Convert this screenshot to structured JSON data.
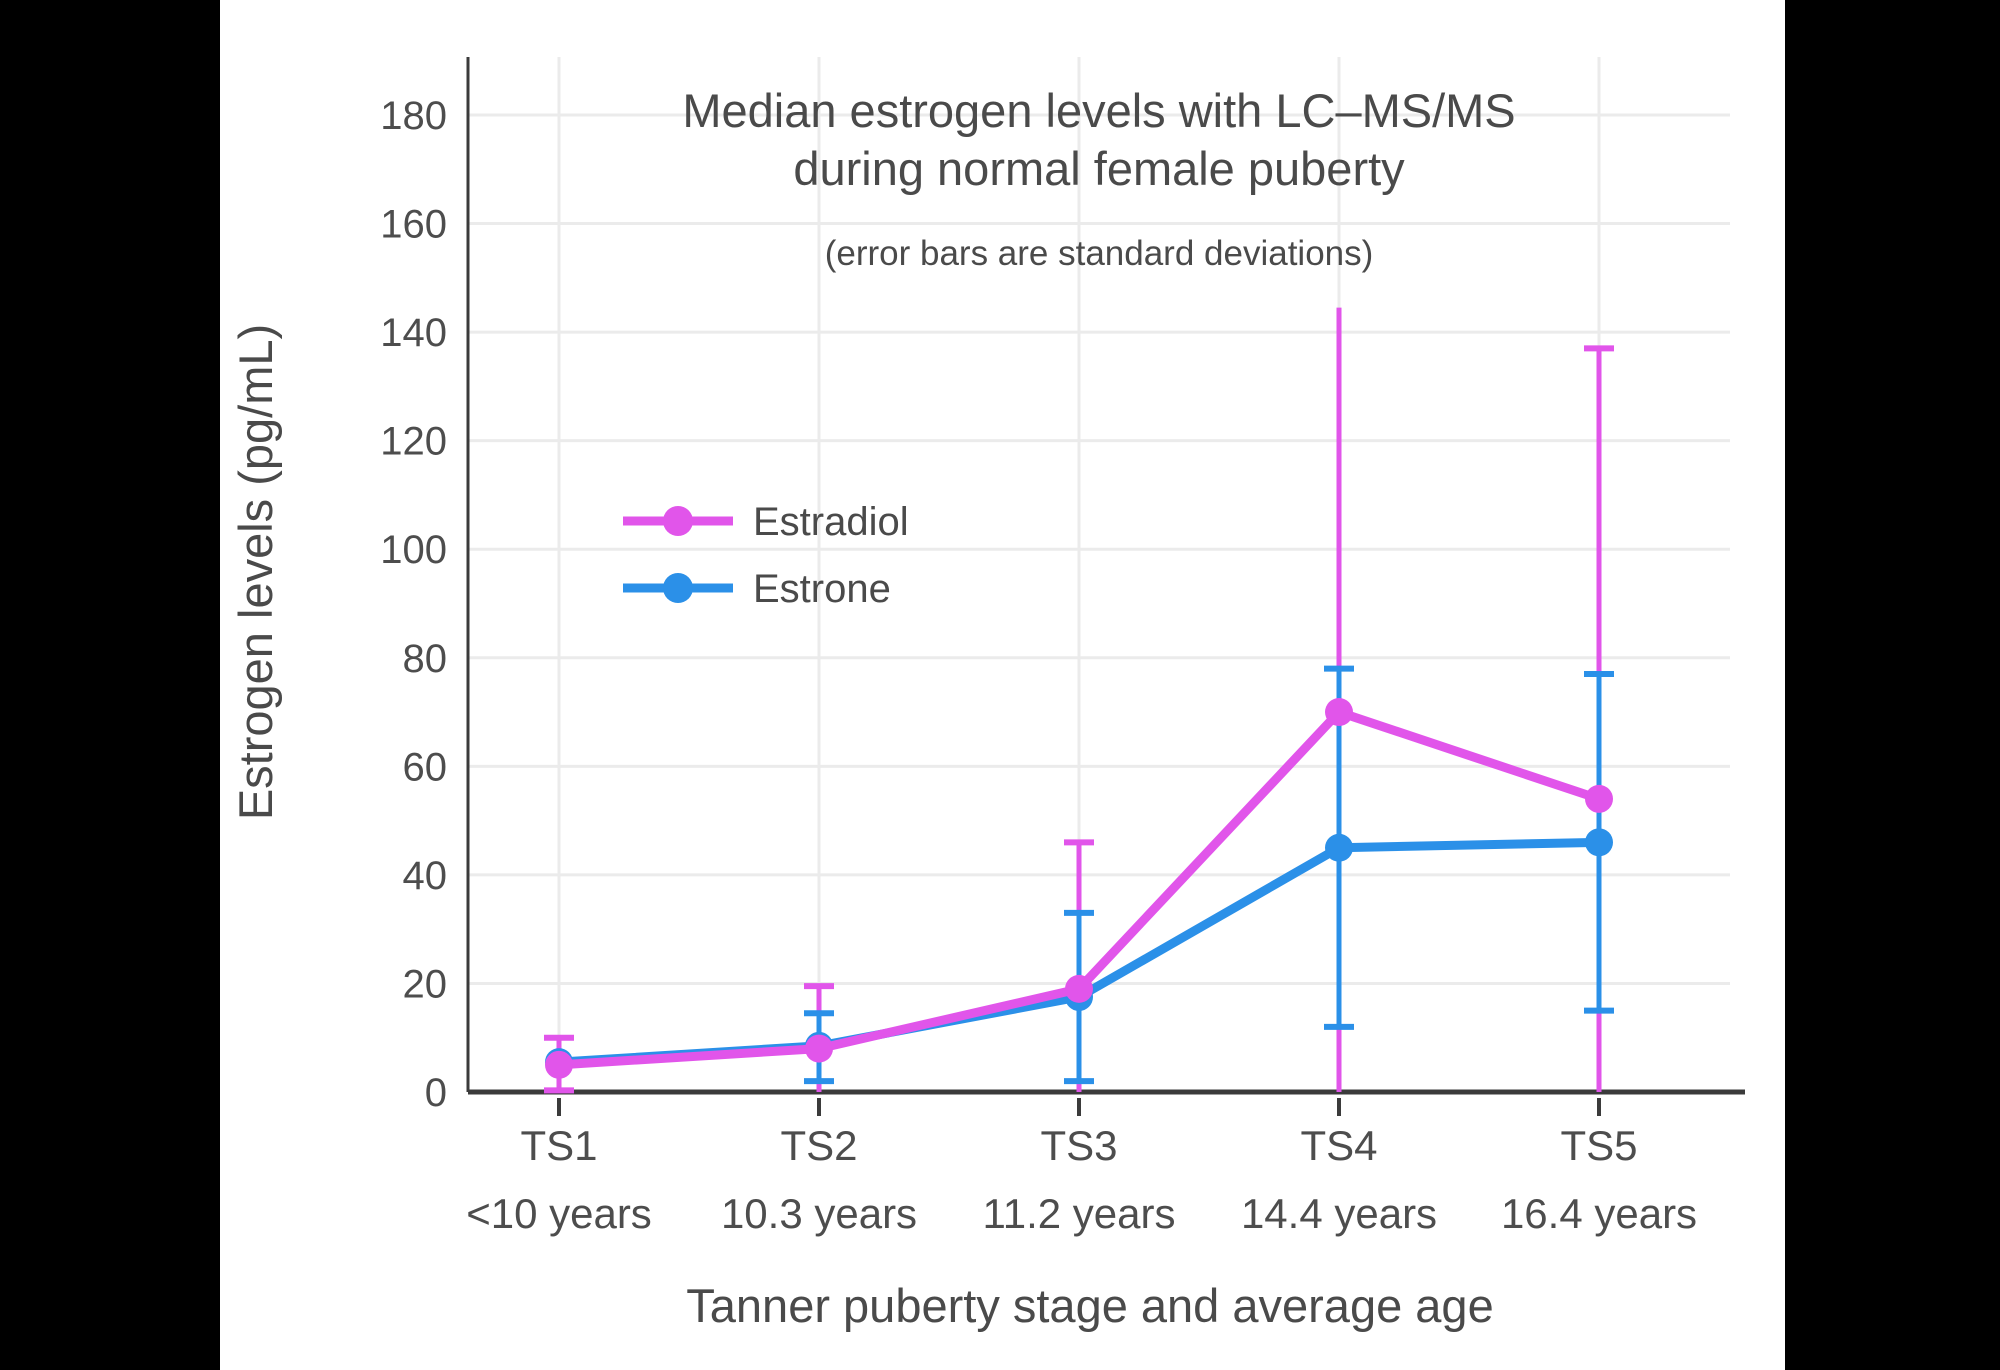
{
  "chart_data": {
    "type": "line",
    "title_lines": {
      "0": "Median estrogen levels with LC–MS/MS",
      "1": "during normal female puberty"
    },
    "subtitle": "(error bars are standard deviations)",
    "xlabel": "Tanner puberty stage and average age",
    "ylabel": "Estrogen levels (pg/mL)",
    "ylim": [
      0,
      190
    ],
    "yticks": [
      0,
      20,
      40,
      60,
      80,
      100,
      120,
      140,
      160,
      180
    ],
    "grid": true,
    "legend_position": "inside-left-middle",
    "categories": [
      "TS1",
      "TS2",
      "TS3",
      "TS4",
      "TS5"
    ],
    "category_ages": [
      "<10 years",
      "10.3 years",
      "11.2 years",
      "14.4 years",
      "16.4 years"
    ],
    "series": [
      {
        "name": "Estradiol",
        "color": "#E155EA",
        "values": [
          5,
          8,
          19,
          70,
          54
        ],
        "error_bars": [
          {
            "lo": 0.3,
            "hi": 10,
            "lo_cap": true,
            "hi_cap": true
          },
          {
            "lo": 0,
            "hi": 19.5,
            "lo_cap": false,
            "hi_cap": true
          },
          {
            "lo": 0,
            "hi": 46,
            "lo_cap": false,
            "hi_cap": true
          },
          {
            "lo": 0,
            "hi": 144.5,
            "lo_cap": false,
            "hi_cap": false
          },
          {
            "lo": 0,
            "hi": 137,
            "lo_cap": false,
            "hi_cap": true
          }
        ]
      },
      {
        "name": "Estrone",
        "color": "#2B90E8",
        "values": [
          5.5,
          8.5,
          17.5,
          45,
          46
        ],
        "error_bars": [
          null,
          {
            "lo": 2,
            "hi": 14.5,
            "lo_cap": true,
            "hi_cap": true
          },
          {
            "lo": 2,
            "hi": 33,
            "lo_cap": true,
            "hi_cap": true
          },
          {
            "lo": 12,
            "hi": 78,
            "lo_cap": true,
            "hi_cap": true
          },
          {
            "lo": 15,
            "hi": 77,
            "lo_cap": true,
            "hi_cap": true
          }
        ]
      }
    ],
    "colors": {
      "background": "#FFFFFF",
      "side_bars": "#000000",
      "grid": "#EBEBEB",
      "axis": "#3B3B3B",
      "text": "#4A4A4A"
    }
  }
}
